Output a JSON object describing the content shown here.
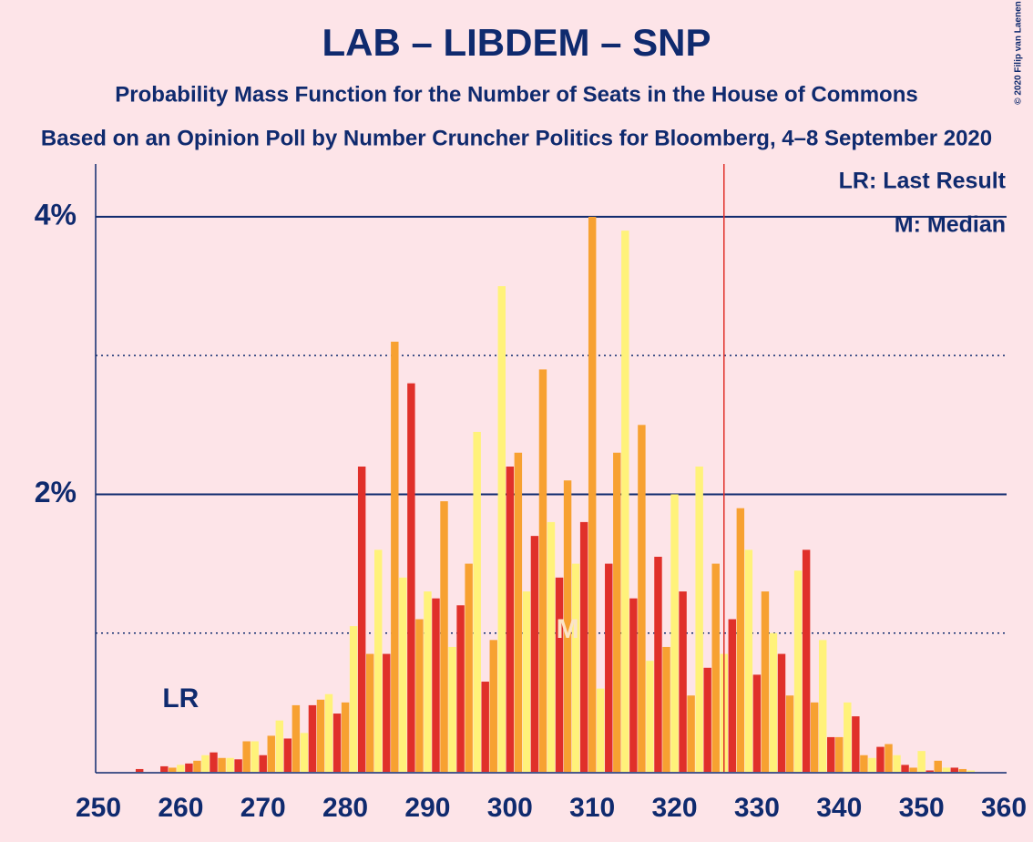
{
  "chart_data": {
    "type": "bar",
    "title": "LAB – LIBDEM – SNP",
    "subtitle": "Probability Mass Function for the Number of Seats in the House of Commons",
    "subtitle2": "Based on an Opinion Poll by Number Cruncher Politics for Bloomberg, 4–8 September 2020",
    "copyright": "© 2020 Filip van Laenen",
    "legend": [
      "LR: Last Result",
      "M: Median"
    ],
    "lr_marker": {
      "label": "LR",
      "x": 260
    },
    "median_marker": {
      "label": "M",
      "x": 307
    },
    "majority_line": 326,
    "colors": [
      "#f7a131",
      "#fff27a",
      "#e0302a"
    ],
    "x": [
      250,
      251,
      252,
      253,
      254,
      255,
      256,
      257,
      258,
      259,
      260,
      261,
      262,
      263,
      264,
      265,
      266,
      267,
      268,
      269,
      270,
      271,
      272,
      273,
      274,
      275,
      276,
      277,
      278,
      279,
      280,
      281,
      282,
      283,
      284,
      285,
      286,
      287,
      288,
      289,
      290,
      291,
      292,
      293,
      294,
      295,
      296,
      297,
      298,
      299,
      300,
      301,
      302,
      303,
      304,
      305,
      306,
      307,
      308,
      309,
      310,
      311,
      312,
      313,
      314,
      315,
      316,
      317,
      318,
      319,
      320,
      321,
      322,
      323,
      324,
      325,
      326,
      327,
      328,
      329,
      330,
      331,
      332,
      333,
      334,
      335,
      336,
      337,
      338,
      339,
      340,
      341,
      342,
      343,
      344,
      345,
      346,
      347,
      348,
      349,
      350,
      351,
      352,
      353,
      354,
      355,
      356,
      357,
      358,
      359,
      360
    ],
    "values": [
      0,
      0,
      0,
      0,
      0,
      0.02,
      0,
      0,
      0.04,
      0.03,
      0.05,
      0.06,
      0.08,
      0.12,
      0.14,
      0.1,
      0.1,
      0.09,
      0.22,
      0.22,
      0.12,
      0.26,
      0.37,
      0.24,
      0.48,
      0.28,
      0.48,
      0.52,
      0.56,
      0.42,
      0.5,
      1.05,
      2.2,
      0.85,
      1.6,
      0.85,
      3.1,
      1.4,
      2.8,
      1.1,
      1.3,
      1.25,
      1.95,
      0.9,
      1.2,
      1.5,
      2.45,
      0.65,
      0.95,
      3.5,
      2.2,
      2.3,
      1.3,
      1.7,
      2.9,
      1.8,
      1.4,
      2.1,
      1.5,
      1.8,
      4.0,
      0.6,
      1.5,
      2.3,
      3.9,
      1.25,
      2.5,
      0.8,
      1.55,
      0.9,
      2.0,
      1.3,
      0.55,
      2.2,
      0.75,
      1.5,
      0.85,
      1.1,
      1.9,
      1.6,
      0.7,
      1.3,
      1.0,
      0.85,
      0.55,
      1.45,
      1.6,
      0.5,
      0.95,
      0.25,
      0.25,
      0.5,
      0.4,
      0.12,
      0.1,
      0.18,
      0.2,
      0.12,
      0.05,
      0.03,
      0.15,
      0.01,
      0.08,
      0.03,
      0.03,
      0.02,
      0.01,
      0,
      0,
      0,
      0
    ],
    "xlim": [
      250,
      360
    ],
    "ylim": [
      0,
      4.4
    ],
    "xticks": [
      250,
      260,
      270,
      280,
      290,
      300,
      310,
      320,
      330,
      340,
      350,
      360
    ],
    "yticks": [
      {
        "value": 2,
        "label": "2%"
      },
      {
        "value": 4,
        "label": "4%"
      }
    ],
    "minor_yticks": [
      1,
      3
    ]
  }
}
